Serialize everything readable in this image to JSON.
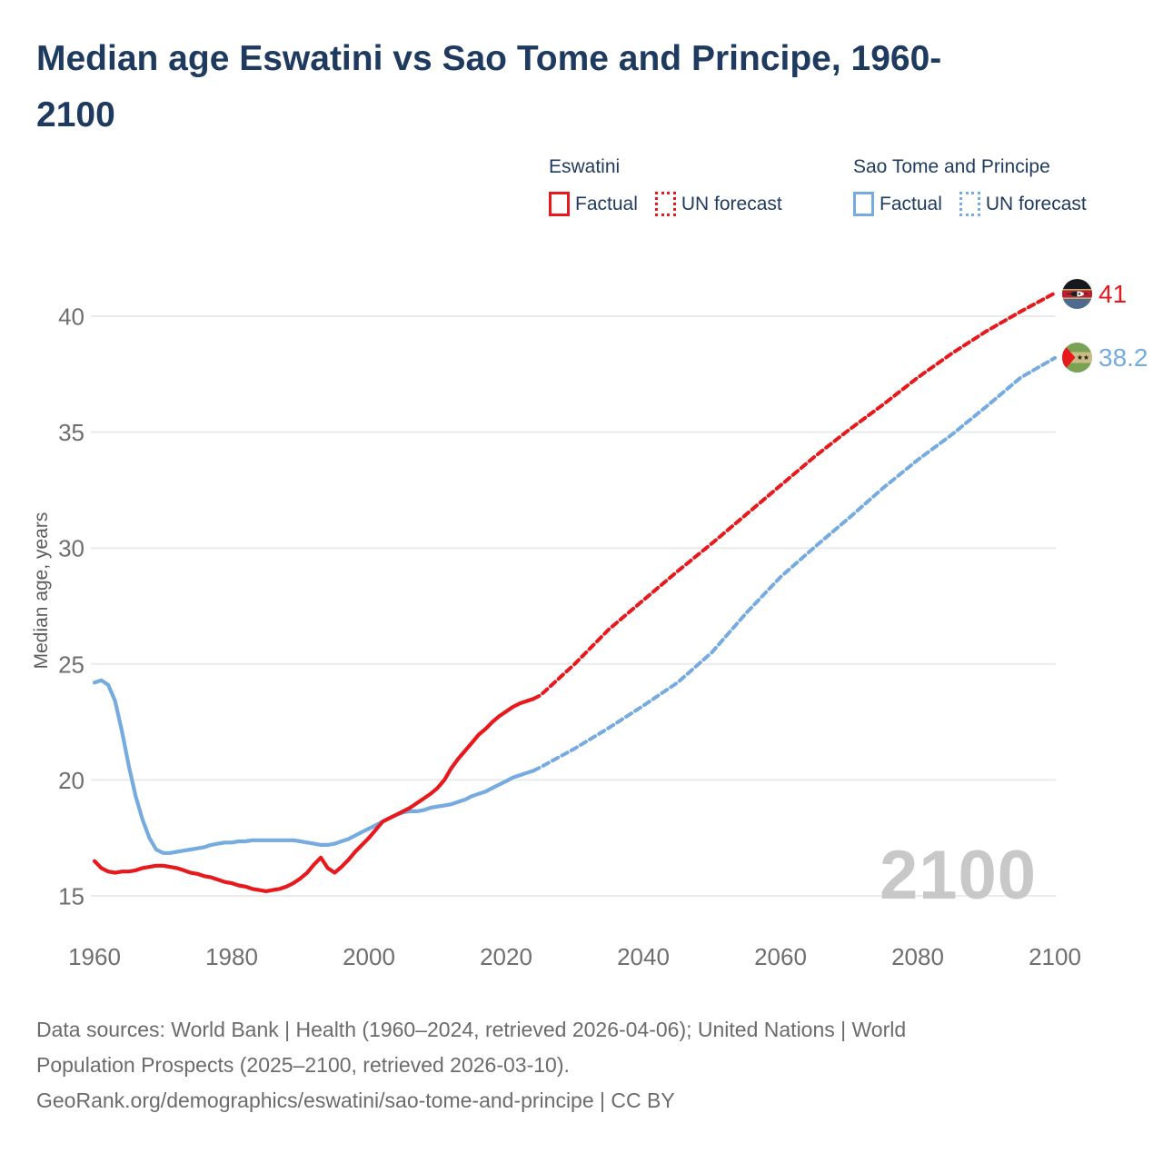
{
  "title": {
    "lines": [
      "Median age Eswatini vs Sao Tome and Principe, 1960-",
      "2100"
    ]
  },
  "legend": {
    "groups": [
      {
        "title": "Eswatini",
        "color_key": "eswatini",
        "items": [
          {
            "label": "Factual",
            "line_style": "solid"
          },
          {
            "label": "UN forecast",
            "line_style": "dashed"
          }
        ]
      },
      {
        "title": "Sao Tome and Principe",
        "color_key": "sao_tome",
        "items": [
          {
            "label": "Factual",
            "line_style": "solid"
          },
          {
            "label": "UN forecast",
            "line_style": "dashed"
          }
        ]
      }
    ]
  },
  "watermark": "2100",
  "end_markers": [
    {
      "country": "Eswatini",
      "value_label": "41",
      "color_key": "eswatini",
      "flag": "eswatini-flag"
    },
    {
      "country": "Sao Tome and Principe",
      "value_label": "38.2",
      "color_key": "sao_tome",
      "flag": "sao-tome-flag"
    }
  ],
  "footer": {
    "lines": [
      "Data sources: World Bank | Health (1960–2024, retrieved 2026-04-06); United Nations | World",
      "Population Prospects (2025–2100, retrieved 2026-03-10).",
      "GeoRank.org/demographics/eswatini/sao-tome-and-principe | CC BY"
    ]
  },
  "colors": {
    "eswatini": "#e8191d",
    "sao_tome": "#76abe0",
    "title_text": "#1e3a5f",
    "axis_text": "#6e6e6e",
    "grid": "#ebebeb",
    "watermark": "#c8c8c8",
    "footer_text": "#6b6b6b"
  },
  "chart_data": {
    "type": "line",
    "title": "Median age Eswatini vs Sao Tome and Principe, 1960-2100",
    "xlabel": "",
    "ylabel": "Median age, years",
    "xlim": [
      1960,
      2100
    ],
    "ylim": [
      15,
      41
    ],
    "yticks": [
      15,
      20,
      25,
      30,
      35,
      40
    ],
    "xticks": [
      1960,
      1980,
      2000,
      2020,
      2040,
      2060,
      2080,
      2100
    ],
    "grid": "horizontal",
    "legend_position": "top-right",
    "series": [
      {
        "name": "Sao Tome and Principe — Factual",
        "color_key": "sao_tome",
        "line_style": "solid",
        "points": [
          [
            1960,
            24.2
          ],
          [
            1961,
            24.3
          ],
          [
            1962,
            24.1
          ],
          [
            1963,
            23.4
          ],
          [
            1964,
            22.1
          ],
          [
            1965,
            20.6
          ],
          [
            1966,
            19.3
          ],
          [
            1967,
            18.3
          ],
          [
            1968,
            17.5
          ],
          [
            1969,
            17.0
          ],
          [
            1970,
            16.85
          ],
          [
            1971,
            16.85
          ],
          [
            1972,
            16.9
          ],
          [
            1973,
            16.95
          ],
          [
            1974,
            17.0
          ],
          [
            1975,
            17.05
          ],
          [
            1976,
            17.1
          ],
          [
            1977,
            17.2
          ],
          [
            1978,
            17.25
          ],
          [
            1979,
            17.3
          ],
          [
            1980,
            17.3
          ],
          [
            1981,
            17.35
          ],
          [
            1982,
            17.35
          ],
          [
            1983,
            17.4
          ],
          [
            1984,
            17.4
          ],
          [
            1985,
            17.4
          ],
          [
            1986,
            17.4
          ],
          [
            1987,
            17.4
          ],
          [
            1988,
            17.4
          ],
          [
            1989,
            17.4
          ],
          [
            1990,
            17.35
          ],
          [
            1991,
            17.3
          ],
          [
            1992,
            17.25
          ],
          [
            1993,
            17.2
          ],
          [
            1994,
            17.2
          ],
          [
            1995,
            17.25
          ],
          [
            1996,
            17.35
          ],
          [
            1997,
            17.45
          ],
          [
            1998,
            17.6
          ],
          [
            1999,
            17.75
          ],
          [
            2000,
            17.9
          ],
          [
            2001,
            18.05
          ],
          [
            2002,
            18.2
          ],
          [
            2003,
            18.35
          ],
          [
            2004,
            18.5
          ],
          [
            2005,
            18.6
          ],
          [
            2006,
            18.65
          ],
          [
            2007,
            18.65
          ],
          [
            2008,
            18.7
          ],
          [
            2009,
            18.8
          ],
          [
            2010,
            18.85
          ],
          [
            2011,
            18.9
          ],
          [
            2012,
            18.95
          ],
          [
            2013,
            19.05
          ],
          [
            2014,
            19.15
          ],
          [
            2015,
            19.3
          ],
          [
            2016,
            19.4
          ],
          [
            2017,
            19.5
          ],
          [
            2018,
            19.65
          ],
          [
            2019,
            19.8
          ],
          [
            2020,
            19.95
          ],
          [
            2021,
            20.1
          ],
          [
            2022,
            20.2
          ],
          [
            2023,
            20.3
          ],
          [
            2024,
            20.4
          ]
        ]
      },
      {
        "name": "Sao Tome and Principe — UN forecast",
        "color_key": "sao_tome",
        "line_style": "dashed",
        "points": [
          [
            2024,
            20.4
          ],
          [
            2025,
            20.55
          ],
          [
            2030,
            21.35
          ],
          [
            2035,
            22.25
          ],
          [
            2040,
            23.2
          ],
          [
            2045,
            24.2
          ],
          [
            2050,
            25.5
          ],
          [
            2055,
            27.2
          ],
          [
            2060,
            28.75
          ],
          [
            2065,
            30.05
          ],
          [
            2070,
            31.3
          ],
          [
            2075,
            32.6
          ],
          [
            2080,
            33.8
          ],
          [
            2085,
            34.9
          ],
          [
            2090,
            36.1
          ],
          [
            2095,
            37.35
          ],
          [
            2100,
            38.2
          ]
        ]
      },
      {
        "name": "Eswatini — Factual",
        "color_key": "eswatini",
        "line_style": "solid",
        "points": [
          [
            1960,
            16.5
          ],
          [
            1961,
            16.2
          ],
          [
            1962,
            16.05
          ],
          [
            1963,
            16.0
          ],
          [
            1964,
            16.05
          ],
          [
            1965,
            16.05
          ],
          [
            1966,
            16.1
          ],
          [
            1967,
            16.2
          ],
          [
            1968,
            16.25
          ],
          [
            1969,
            16.3
          ],
          [
            1970,
            16.3
          ],
          [
            1971,
            16.25
          ],
          [
            1972,
            16.2
          ],
          [
            1973,
            16.1
          ],
          [
            1974,
            16.0
          ],
          [
            1975,
            15.95
          ],
          [
            1976,
            15.85
          ],
          [
            1977,
            15.8
          ],
          [
            1978,
            15.7
          ],
          [
            1979,
            15.6
          ],
          [
            1980,
            15.55
          ],
          [
            1981,
            15.45
          ],
          [
            1982,
            15.4
          ],
          [
            1983,
            15.3
          ],
          [
            1984,
            15.25
          ],
          [
            1985,
            15.2
          ],
          [
            1986,
            15.25
          ],
          [
            1987,
            15.3
          ],
          [
            1988,
            15.4
          ],
          [
            1989,
            15.55
          ],
          [
            1990,
            15.75
          ],
          [
            1991,
            16.0
          ],
          [
            1992,
            16.35
          ],
          [
            1993,
            16.65
          ],
          [
            1994,
            16.2
          ],
          [
            1995,
            16.0
          ],
          [
            1996,
            16.25
          ],
          [
            1997,
            16.55
          ],
          [
            1998,
            16.9
          ],
          [
            1999,
            17.2
          ],
          [
            2000,
            17.5
          ],
          [
            2001,
            17.85
          ],
          [
            2002,
            18.2
          ],
          [
            2003,
            18.35
          ],
          [
            2004,
            18.5
          ],
          [
            2005,
            18.65
          ],
          [
            2006,
            18.8
          ],
          [
            2007,
            19.0
          ],
          [
            2008,
            19.2
          ],
          [
            2009,
            19.4
          ],
          [
            2010,
            19.65
          ],
          [
            2011,
            20.0
          ],
          [
            2012,
            20.5
          ],
          [
            2013,
            20.9
          ],
          [
            2014,
            21.25
          ],
          [
            2015,
            21.6
          ],
          [
            2016,
            21.95
          ],
          [
            2017,
            22.2
          ],
          [
            2018,
            22.5
          ],
          [
            2019,
            22.75
          ],
          [
            2020,
            22.95
          ],
          [
            2021,
            23.15
          ],
          [
            2022,
            23.3
          ],
          [
            2023,
            23.4
          ],
          [
            2024,
            23.5
          ]
        ]
      },
      {
        "name": "Eswatini — UN forecast",
        "color_key": "eswatini",
        "line_style": "dashed",
        "points": [
          [
            2024,
            23.5
          ],
          [
            2025,
            23.65
          ],
          [
            2030,
            25.0
          ],
          [
            2035,
            26.5
          ],
          [
            2040,
            27.75
          ],
          [
            2045,
            29.0
          ],
          [
            2050,
            30.2
          ],
          [
            2055,
            31.45
          ],
          [
            2060,
            32.7
          ],
          [
            2065,
            33.95
          ],
          [
            2070,
            35.1
          ],
          [
            2075,
            36.2
          ],
          [
            2080,
            37.35
          ],
          [
            2085,
            38.4
          ],
          [
            2090,
            39.35
          ],
          [
            2095,
            40.2
          ],
          [
            2100,
            41.0
          ]
        ]
      }
    ],
    "end_values": {
      "eswatini_2100": 41,
      "sao_tome_2100": 38.2
    }
  }
}
